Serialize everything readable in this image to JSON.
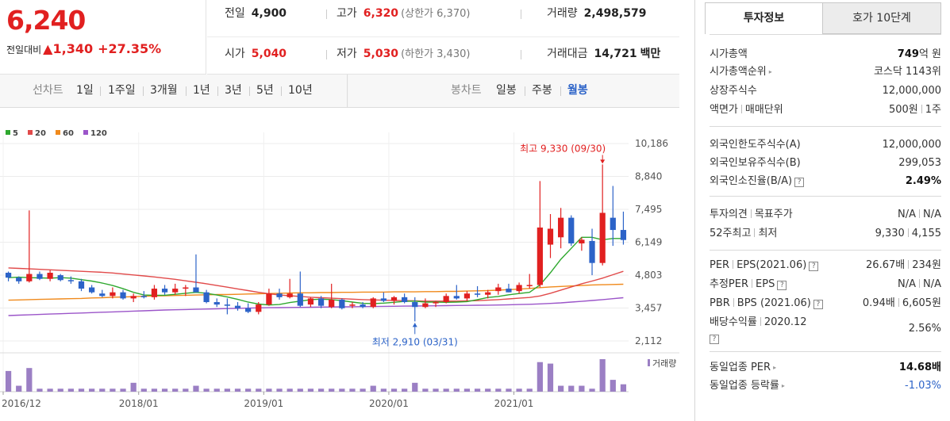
{
  "price": {
    "current": "6,240",
    "diff_label": "전일대비",
    "diff_arrow": "▲",
    "diff_amount": "1,340",
    "diff_pct": "+27.35%"
  },
  "quote": {
    "prev_close_label": "전일",
    "prev_close": "4,900",
    "high_label": "고가",
    "high": "6,320",
    "upper_limit": "(상한가 6,370)",
    "volume_label": "거래량",
    "volume": "2,498,579",
    "open_label": "시가",
    "open": "5,040",
    "low_label": "저가",
    "low": "5,030",
    "lower_limit": "(하한가 3,430)",
    "value_label": "거래대금",
    "value": "14,721",
    "value_unit": "백만"
  },
  "periods": {
    "line_head": "선차트",
    "line_items": [
      "1일",
      "1주일",
      "3개월",
      "1년",
      "3년",
      "5년",
      "10년"
    ],
    "candle_head": "봉차트",
    "candle_items": [
      "일봉",
      "주봉",
      "월봉"
    ],
    "selected": "월봉"
  },
  "chart_data": {
    "type": "candlestick",
    "interval": "monthly",
    "legend": [
      {
        "name": "5",
        "color": "#2ea82e"
      },
      {
        "name": "20",
        "color": "#e14a4a"
      },
      {
        "name": "60",
        "color": "#f08a1c"
      },
      {
        "name": "120",
        "color": "#9b55c9"
      }
    ],
    "y_ticks": [
      "10,186",
      "8,840",
      "7,495",
      "6,149",
      "4,803",
      "3,457",
      "2,112"
    ],
    "y_tick_values": [
      10186,
      8840,
      7495,
      6149,
      4803,
      3457,
      2112
    ],
    "x_ticks": [
      "2016/12",
      "2018/01",
      "2019/01",
      "2020/01",
      "2021/01"
    ],
    "x_tick_months": [
      0,
      13,
      25,
      37,
      49
    ],
    "high_annotation": {
      "text": "최고 9,330 (09/30)",
      "month": 57,
      "value": 9330
    },
    "low_annotation": {
      "text": "최저 2,910 (03/31)",
      "month": 39,
      "value": 2910
    },
    "volume_label": "거래량",
    "candles": [
      [
        4900,
        4950,
        4550,
        4700
      ],
      [
        4700,
        4750,
        4450,
        4550
      ],
      [
        4550,
        7450,
        4500,
        4850
      ],
      [
        4850,
        4950,
        4600,
        4650
      ],
      [
        4650,
        5000,
        4550,
        4900
      ],
      [
        4800,
        4850,
        4550,
        4600
      ],
      [
        4600,
        4750,
        4450,
        4550
      ],
      [
        4550,
        4650,
        4150,
        4250
      ],
      [
        4300,
        4400,
        4050,
        4100
      ],
      [
        4050,
        4200,
        3900,
        3950
      ],
      [
        3950,
        4300,
        3850,
        4100
      ],
      [
        4100,
        4200,
        3800,
        3850
      ],
      [
        3850,
        4050,
        3700,
        3950
      ],
      [
        3950,
        4150,
        3850,
        3900
      ],
      [
        3900,
        4400,
        3800,
        4250
      ],
      [
        4250,
        4400,
        4000,
        4100
      ],
      [
        4100,
        4450,
        4000,
        4250
      ],
      [
        4250,
        4400,
        3950,
        4300
      ],
      [
        4300,
        5650,
        4150,
        4100
      ],
      [
        4100,
        4200,
        3650,
        3700
      ],
      [
        3700,
        3850,
        3500,
        3600
      ],
      [
        3600,
        3850,
        3200,
        3550
      ],
      [
        3550,
        3700,
        3350,
        3450
      ],
      [
        3450,
        3650,
        3250,
        3300
      ],
      [
        3300,
        3700,
        3200,
        3600
      ],
      [
        3600,
        4250,
        3550,
        4050
      ],
      [
        4050,
        4250,
        3800,
        3900
      ],
      [
        3900,
        4650,
        3850,
        4050
      ],
      [
        4050,
        4950,
        3500,
        3550
      ],
      [
        3600,
        3900,
        3500,
        3850
      ],
      [
        3850,
        3950,
        3450,
        3550
      ],
      [
        3500,
        4450,
        3450,
        3800
      ],
      [
        3800,
        3850,
        3400,
        3450
      ],
      [
        3550,
        3700,
        3450,
        3600
      ],
      [
        3600,
        3700,
        3450,
        3500
      ],
      [
        3500,
        3900,
        3450,
        3850
      ],
      [
        3850,
        4100,
        3700,
        3750
      ],
      [
        3750,
        3950,
        3600,
        3900
      ],
      [
        3900,
        4050,
        3650,
        3700
      ],
      [
        3700,
        3900,
        2910,
        3500
      ],
      [
        3500,
        3850,
        3450,
        3650
      ],
      [
        3650,
        3750,
        3500,
        3700
      ],
      [
        3700,
        4050,
        3650,
        3950
      ],
      [
        3950,
        4400,
        3800,
        3850
      ],
      [
        3850,
        4150,
        3750,
        4050
      ],
      [
        4050,
        4350,
        3900,
        4000
      ],
      [
        4000,
        4200,
        3850,
        4100
      ],
      [
        4150,
        4450,
        4000,
        4300
      ],
      [
        4250,
        4450,
        4100,
        4100
      ],
      [
        4150,
        4500,
        4050,
        4400
      ],
      [
        4400,
        4850,
        4250,
        4400
      ],
      [
        4400,
        8650,
        4300,
        6750
      ],
      [
        6050,
        7300,
        5500,
        6700
      ],
      [
        6350,
        7550,
        5900,
        7150
      ],
      [
        7150,
        7250,
        6000,
        6100
      ],
      [
        6100,
        6350,
        5800,
        6250
      ],
      [
        6200,
        6700,
        4800,
        5300
      ],
      [
        5300,
        9330,
        5200,
        7350
      ],
      [
        7150,
        8450,
        6000,
        6650
      ],
      [
        6650,
        7400,
        6050,
        6240
      ]
    ],
    "ma5": [
      4700,
      4720,
      4700,
      4690,
      4680,
      4700,
      4680,
      4620,
      4560,
      4480,
      4380,
      4250,
      4100,
      3990,
      3980,
      3980,
      4020,
      4060,
      4100,
      4060,
      3990,
      3910,
      3810,
      3700,
      3620,
      3580,
      3600,
      3680,
      3740,
      3800,
      3820,
      3800,
      3760,
      3700,
      3650,
      3640,
      3660,
      3690,
      3730,
      3740,
      3700,
      3700,
      3690,
      3700,
      3720,
      3800,
      3890,
      3930,
      4000,
      4050,
      4100,
      4400,
      4900,
      5450,
      5900,
      6350,
      6350,
      6250,
      6300,
      6300
    ],
    "ma20": [
      5100,
      5080,
      5060,
      5040,
      5020,
      5000,
      4980,
      4960,
      4940,
      4920,
      4890,
      4850,
      4810,
      4770,
      4730,
      4680,
      4630,
      4570,
      4510,
      4450,
      4380,
      4310,
      4240,
      4170,
      4100,
      4040,
      3990,
      3960,
      3930,
      3900,
      3880,
      3860,
      3840,
      3820,
      3800,
      3790,
      3780,
      3770,
      3760,
      3750,
      3740,
      3740,
      3740,
      3740,
      3750,
      3760,
      3780,
      3800,
      3830,
      3860,
      3890,
      3950,
      4060,
      4190,
      4320,
      4450,
      4560,
      4680,
      4820,
      4960
    ],
    "ma60": [
      3780,
      3790,
      3800,
      3810,
      3820,
      3830,
      3840,
      3850,
      3870,
      3880,
      3900,
      3910,
      3920,
      3940,
      3950,
      3960,
      3970,
      3980,
      3990,
      4000,
      4010,
      4010,
      4020,
      4030,
      4040,
      4050,
      4060,
      4070,
      4080,
      4080,
      4090,
      4090,
      4100,
      4100,
      4110,
      4110,
      4110,
      4120,
      4120,
      4120,
      4130,
      4130,
      4140,
      4140,
      4150,
      4160,
      4170,
      4190,
      4210,
      4230,
      4260,
      4290,
      4320,
      4340,
      4360,
      4380,
      4400,
      4410,
      4420,
      4430
    ],
    "ma120": [
      3150,
      3165,
      3180,
      3195,
      3210,
      3225,
      3240,
      3255,
      3270,
      3285,
      3300,
      3315,
      3330,
      3345,
      3360,
      3375,
      3385,
      3395,
      3405,
      3415,
      3425,
      3435,
      3445,
      3455,
      3465,
      3470,
      3475,
      3480,
      3485,
      3490,
      3495,
      3500,
      3505,
      3510,
      3515,
      3520,
      3525,
      3530,
      3535,
      3540,
      3545,
      3550,
      3555,
      3560,
      3565,
      3570,
      3575,
      3580,
      3590,
      3600,
      3610,
      3625,
      3645,
      3670,
      3700,
      3730,
      3765,
      3800,
      3840,
      3880
    ],
    "volume": [
      0.7,
      0.2,
      0.8,
      0.1,
      0.1,
      0.1,
      0.1,
      0.1,
      0.1,
      0.1,
      0.1,
      0.1,
      0.3,
      0.1,
      0.1,
      0.1,
      0.1,
      0.1,
      0.2,
      0.1,
      0.1,
      0.1,
      0.1,
      0.1,
      0.1,
      0.1,
      0.1,
      0.1,
      0.1,
      0.1,
      0.1,
      0.1,
      0.1,
      0.1,
      0.1,
      0.2,
      0.1,
      0.1,
      0.1,
      0.3,
      0.1,
      0.1,
      0.1,
      0.1,
      0.1,
      0.1,
      0.1,
      0.1,
      0.1,
      0.1,
      0.1,
      1.0,
      0.95,
      0.2,
      0.2,
      0.2,
      0.1,
      1.1,
      0.4,
      0.25
    ]
  },
  "right_panel": {
    "tabs": [
      "투자정보",
      "호가 10단계"
    ],
    "sec1": [
      {
        "k": "시가총액",
        "v_bold": "749",
        "v_rest": "억 원"
      },
      {
        "k": "시가총액순위",
        "arrow": true,
        "v": "코스닥 1143위"
      },
      {
        "k": "상장주식수",
        "v": "12,000,000"
      },
      {
        "k1": "액면가",
        "k2": "매매단위",
        "v1": "500원",
        "v2": "1주"
      }
    ],
    "sec2": [
      {
        "k": "외국인한도주식수(A)",
        "v": "12,000,000"
      },
      {
        "k": "외국인보유주식수(B)",
        "v": "299,053"
      },
      {
        "k": "외국인소진율(B/A)",
        "help": true,
        "v_bold": "2.49%"
      }
    ],
    "sec3": [
      {
        "k1": "투자의견",
        "k2": "목표주가",
        "v1": "N/A",
        "v2": "N/A"
      },
      {
        "k1": "52주최고",
        "k2": "최저",
        "v1": "9,330",
        "v2": "4,155"
      }
    ],
    "sec4": [
      {
        "k1": "PER",
        "k2": "EPS(2021.06)",
        "v1": "26.67배",
        "v2": "234원"
      },
      {
        "k1": "추정PER",
        "k2": "EPS",
        "v1": "N/A",
        "v2": "N/A"
      },
      {
        "k1": "PBR",
        "k2": "BPS (2021.06)",
        "v1": "0.94배",
        "v2": "6,605원"
      },
      {
        "k1": "배당수익률",
        "k2": "2020.12",
        "v": "2.56%"
      }
    ],
    "sec5": [
      {
        "k": "동일업종 PER",
        "v_bold": "14.68배"
      },
      {
        "k": "동일업종 등락률",
        "v_blue": "-1.03%"
      }
    ],
    "help_glyph": "?",
    "arrow_glyph": "▸",
    "colors": {
      "up": "#e12020",
      "down": "#2c63c8",
      "accent": "#2c63c8",
      "volume": "#9b7fc4"
    }
  }
}
